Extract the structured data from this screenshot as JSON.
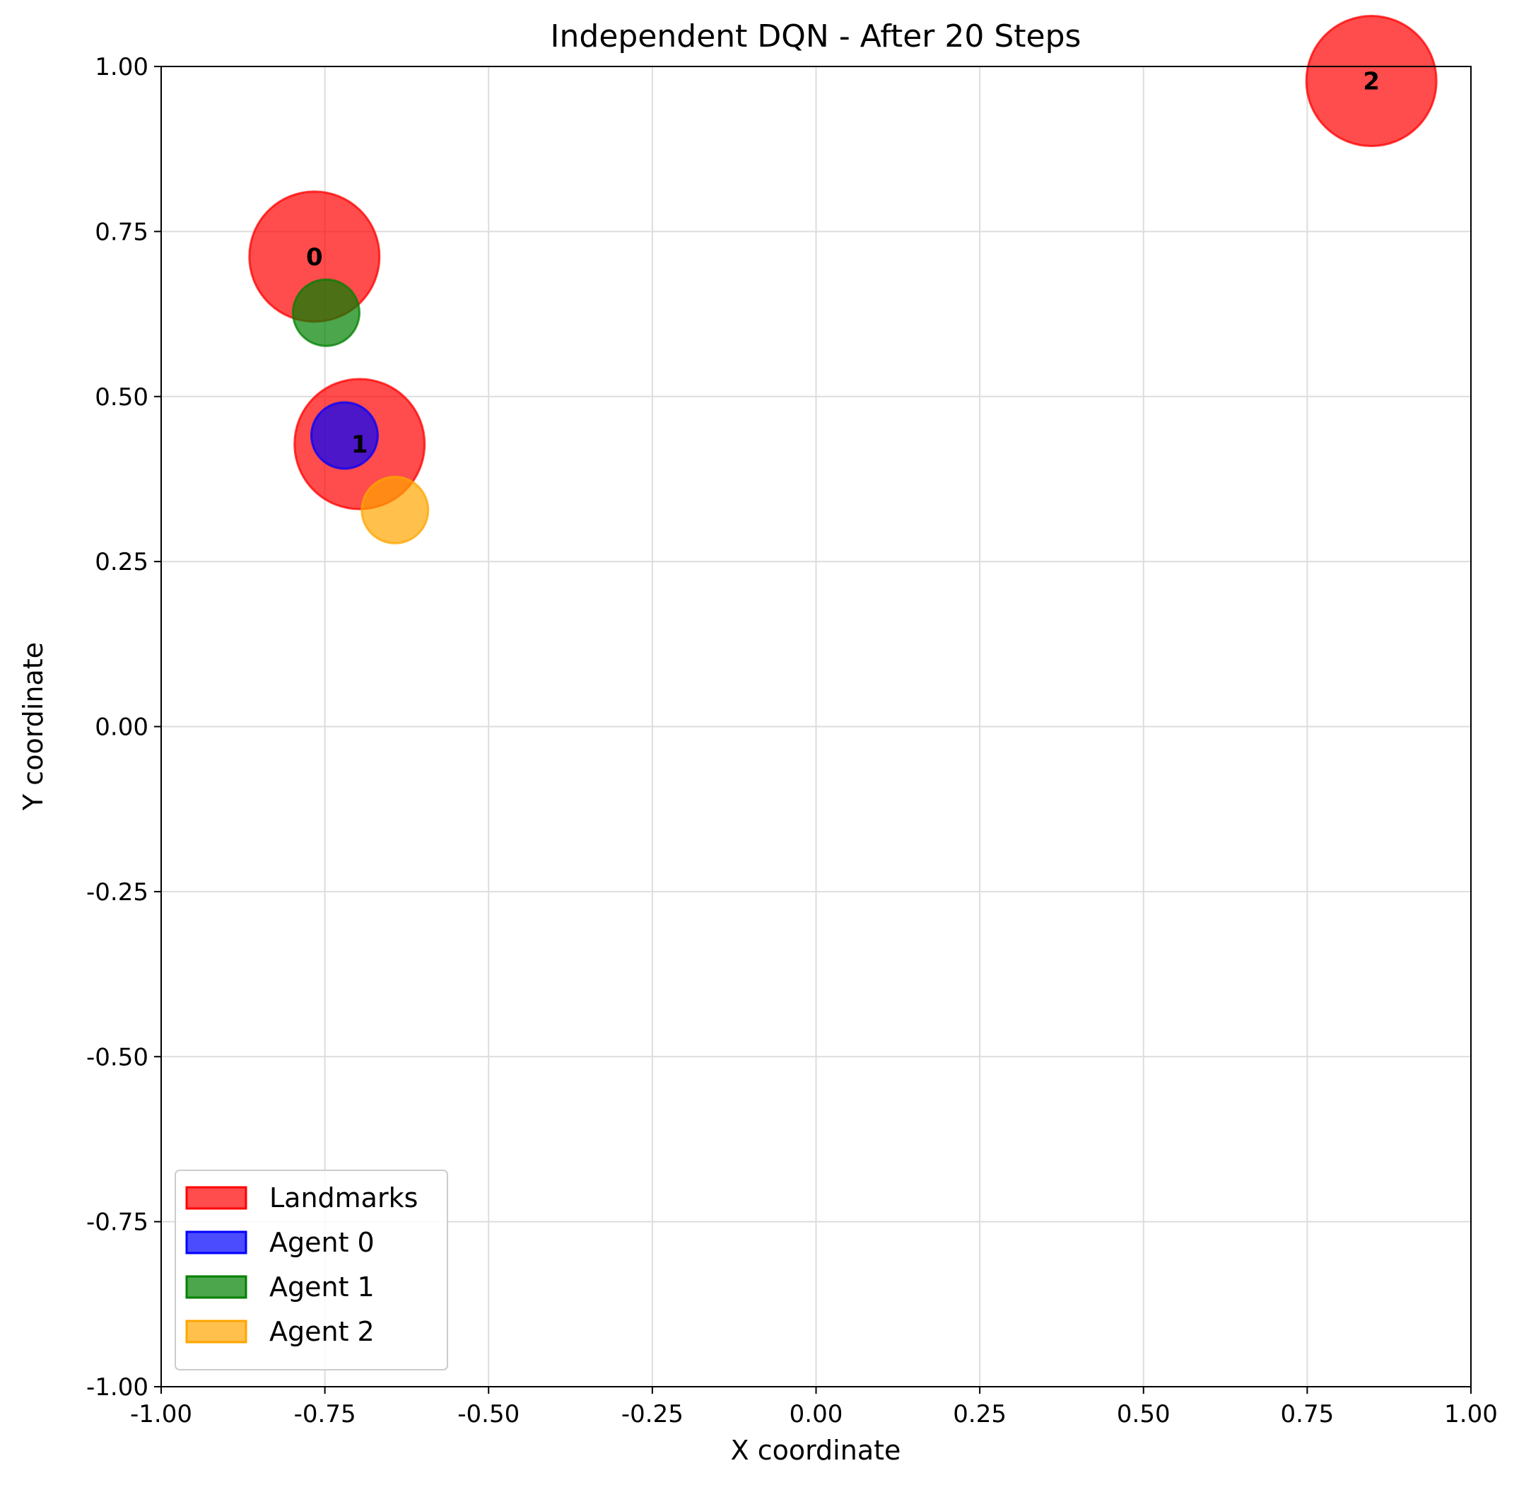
{
  "chart_data": {
    "type": "scatter",
    "title": "Independent DQN - After 20 Steps",
    "xlabel": "X coordinate",
    "ylabel": "Y coordinate",
    "xlim": [
      -1.0,
      1.0
    ],
    "ylim": [
      -1.0,
      1.0
    ],
    "xticks": [
      "-1.00",
      "-0.75",
      "-0.50",
      "-0.25",
      "0.00",
      "0.25",
      "0.50",
      "0.75",
      "1.00"
    ],
    "yticks": [
      "-1.00",
      "-0.75",
      "-0.50",
      "-0.25",
      "0.00",
      "0.25",
      "0.50",
      "0.75",
      "1.00"
    ],
    "grid": true,
    "legend_position": "lower-left",
    "series": [
      {
        "name": "Landmarks",
        "color": "#ff0000",
        "kind": "landmark",
        "points": [
          {
            "x": -0.766,
            "y": 0.712,
            "label": "0"
          },
          {
            "x": -0.697,
            "y": 0.428,
            "label": "1"
          },
          {
            "x": 0.848,
            "y": 0.978,
            "label": "2"
          }
        ]
      },
      {
        "name": "Agent 0",
        "color": "#0000ff",
        "kind": "agent",
        "points": [
          {
            "x": -0.72,
            "y": 0.441
          }
        ]
      },
      {
        "name": "Agent 1",
        "color": "#008000",
        "kind": "agent",
        "points": [
          {
            "x": -0.748,
            "y": 0.627
          }
        ]
      },
      {
        "name": "Agent 2",
        "color": "#ffa500",
        "kind": "agent",
        "points": [
          {
            "x": -0.643,
            "y": 0.328
          }
        ]
      }
    ]
  }
}
